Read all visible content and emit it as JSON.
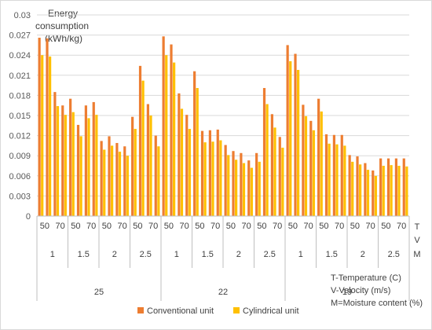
{
  "chart_data": {
    "type": "bar",
    "ylabel": [
      "Energy",
      "consumption",
      "(kWh/kg)"
    ],
    "ylim": [
      0,
      0.03
    ],
    "yticks": [
      "0",
      "0.003",
      "0.006",
      "0.009",
      "0.012",
      "0.015",
      "0.018",
      "0.021",
      "0.024",
      "0.027",
      "0.03"
    ],
    "grid": true,
    "level_labels": [
      "T",
      "V",
      "M"
    ],
    "moisture_levels": [
      "50",
      "70"
    ],
    "temperatures": [
      "25",
      "22",
      "19"
    ],
    "velocities": [
      "1",
      "1.5",
      "2",
      "2.5"
    ],
    "notes": [
      "T-Temperature (C)",
      "V-Velocity (m/s)",
      "M=Moisture content (%)"
    ],
    "legend": {
      "position": "bottom"
    },
    "series": [
      {
        "name": "Conventional unit",
        "color": "#ED7D31",
        "values": [
          0.0266,
          0.0265,
          0.0185,
          0.0165,
          0.0175,
          0.0136,
          0.0165,
          0.017,
          0.0112,
          0.0119,
          0.0109,
          0.0104,
          0.0148,
          0.0224,
          0.0167,
          0.012,
          0.0268,
          0.0256,
          0.0183,
          0.0151,
          0.0216,
          0.0127,
          0.0128,
          0.0129,
          0.0106,
          0.0097,
          0.0094,
          0.0083,
          0.0094,
          0.0191,
          0.0152,
          0.0118,
          0.0255,
          0.0242,
          0.0166,
          0.0142,
          0.0175,
          0.0122,
          0.0121,
          0.0121,
          0.0091,
          0.0089,
          0.0079,
          0.0068,
          0.0086,
          0.0086,
          0.0086,
          0.0086
        ]
      },
      {
        "name": "Cylindrical unit",
        "color": "#FFC000",
        "values": [
          0.024,
          0.0238,
          0.0164,
          0.0151,
          0.0155,
          0.0119,
          0.0146,
          0.0151,
          0.0099,
          0.0105,
          0.0096,
          0.009,
          0.013,
          0.0202,
          0.015,
          0.0104,
          0.024,
          0.0229,
          0.016,
          0.013,
          0.0191,
          0.011,
          0.0111,
          0.0113,
          0.0091,
          0.0084,
          0.0079,
          0.0072,
          0.0081,
          0.0167,
          0.0132,
          0.0102,
          0.0231,
          0.0218,
          0.0149,
          0.0128,
          0.0156,
          0.0108,
          0.0107,
          0.0105,
          0.0081,
          0.0077,
          0.0069,
          0.006,
          0.0075,
          0.0076,
          0.0075,
          0.0074
        ]
      }
    ]
  }
}
